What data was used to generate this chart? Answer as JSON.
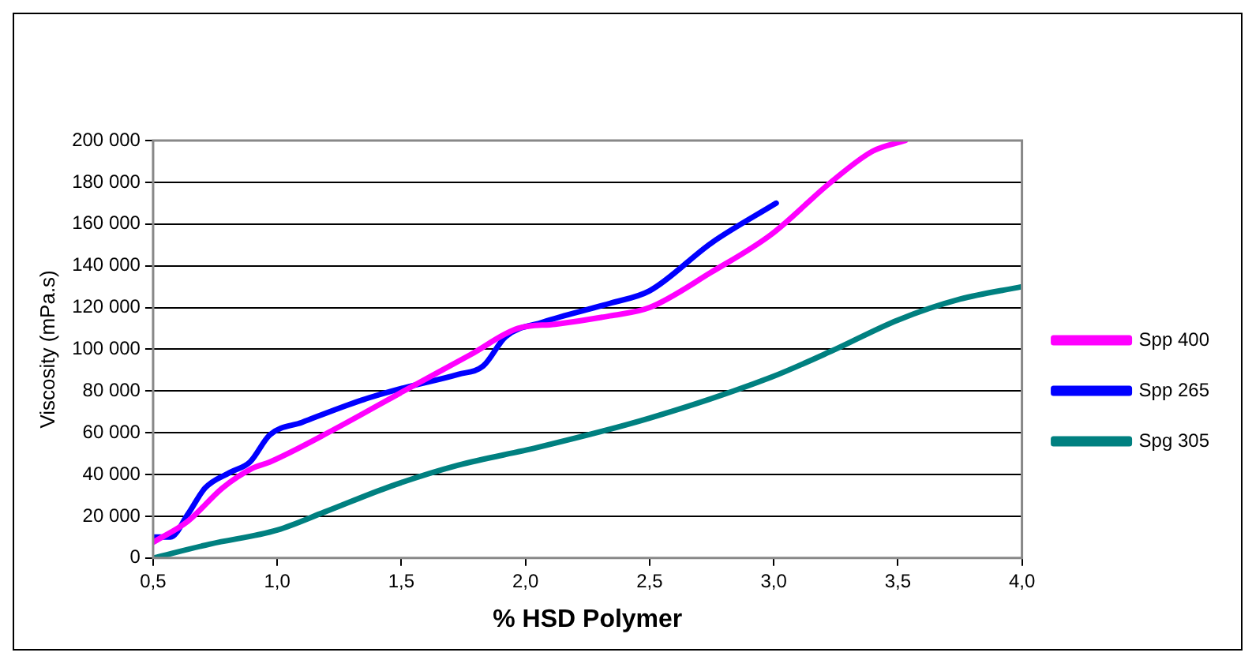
{
  "chart_data": {
    "type": "line",
    "xlabel": "% HSD Polymer",
    "ylabel": "Viscosity (mPa.s)",
    "xlim": [
      0.5,
      4.0
    ],
    "xticks": [
      {
        "value": 0.5,
        "label": "0,5"
      },
      {
        "value": 1.0,
        "label": "1,0"
      },
      {
        "value": 1.5,
        "label": "1,5"
      },
      {
        "value": 2.0,
        "label": "2,0"
      },
      {
        "value": 2.5,
        "label": "2,5"
      },
      {
        "value": 3.0,
        "label": "3,0"
      },
      {
        "value": 3.5,
        "label": "3,5"
      },
      {
        "value": 4.0,
        "label": "4,0"
      }
    ],
    "ylim": [
      0,
      200000
    ],
    "yticks": [
      {
        "value": 0,
        "label": "0"
      },
      {
        "value": 20000,
        "label": "20 000"
      },
      {
        "value": 40000,
        "label": "40 000"
      },
      {
        "value": 60000,
        "label": "60 000"
      },
      {
        "value": 80000,
        "label": "80 000"
      },
      {
        "value": 100000,
        "label": "100 000"
      },
      {
        "value": 120000,
        "label": "120 000"
      },
      {
        "value": 140000,
        "label": "140 000"
      },
      {
        "value": 160000,
        "label": "160 000"
      },
      {
        "value": 180000,
        "label": "180 000"
      },
      {
        "value": 200000,
        "label": "200 000"
      }
    ],
    "grid": "y",
    "legend": "right",
    "marker": "none",
    "line_style": "solid",
    "series": [
      {
        "name": "Spp 400",
        "color": "#ff00ff",
        "x": [
          0.5,
          0.64,
          0.78,
          0.9,
          0.97,
          1.22,
          1.51,
          1.78,
          1.97,
          2.12,
          2.34,
          2.5,
          2.75,
          2.99,
          3.23,
          3.4,
          3.53
        ],
        "values": [
          7500,
          17600,
          33600,
          43000,
          46000,
          61000,
          80000,
          97500,
          110000,
          112000,
          116000,
          120000,
          137000,
          155000,
          180000,
          195000,
          200000
        ]
      },
      {
        "name": "Spp 265",
        "color": "#0000ff",
        "x": [
          0.5,
          0.57,
          0.64,
          0.71,
          0.81,
          0.89,
          0.97,
          1.1,
          1.34,
          1.51,
          1.73,
          1.83,
          1.92,
          2.07,
          2.34,
          2.5,
          2.75,
          3.01
        ],
        "values": [
          10000,
          10000,
          21000,
          33600,
          41000,
          46000,
          59000,
          65000,
          75600,
          81500,
          88000,
          92000,
          106000,
          113000,
          122000,
          128000,
          151000,
          170000
        ]
      },
      {
        "name": "Spg 305",
        "color": "#008080",
        "x": [
          0.5,
          0.73,
          1.0,
          1.19,
          1.46,
          1.73,
          2.05,
          2.5,
          2.99,
          3.23,
          3.5,
          3.75,
          4.0
        ],
        "values": [
          0,
          6700,
          13400,
          22000,
          34500,
          44500,
          53000,
          67000,
          86600,
          99000,
          114000,
          124000,
          130000
        ]
      }
    ]
  }
}
